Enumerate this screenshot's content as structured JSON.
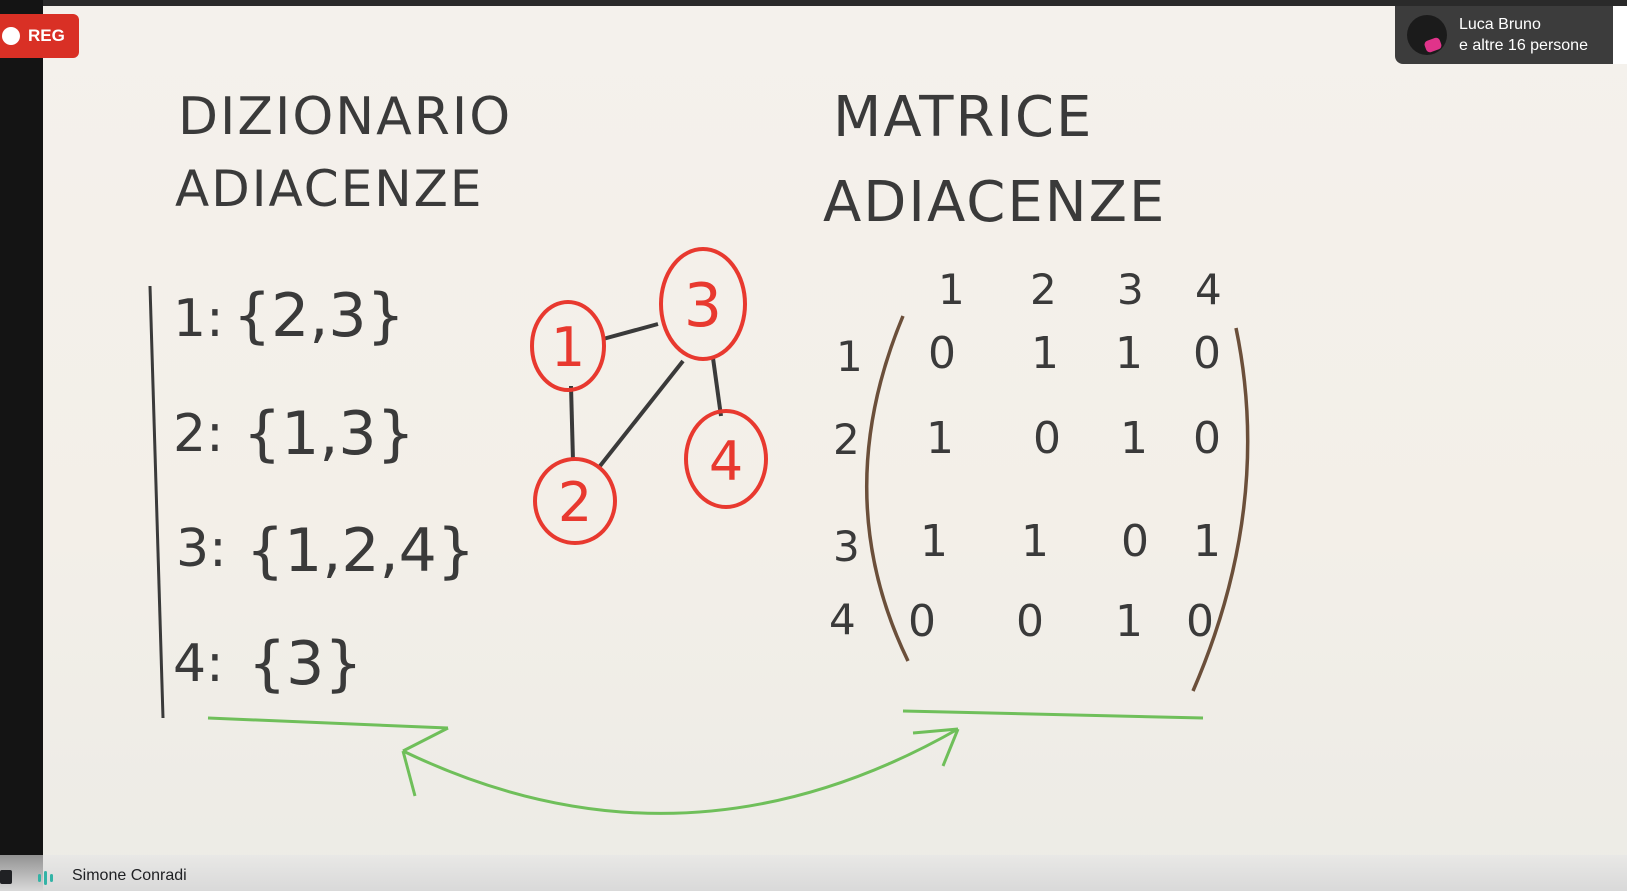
{
  "recording": {
    "label": "REG"
  },
  "participants": {
    "name": "Luca Bruno",
    "others": "e altre 16 persone"
  },
  "speaker": {
    "name": "Simone Conradi"
  },
  "whiteboard": {
    "left_title_line1": "DIZIONARIO",
    "left_title_line2": "ADIACENZE",
    "right_title_line1": "MATRICE",
    "right_title_line2": "ADIACENZE",
    "dictionary": [
      {
        "key": "1:",
        "value": "{2,3}"
      },
      {
        "key": "2:",
        "value": "{1,3}"
      },
      {
        "key": "3:",
        "value": "{1,2,4}"
      },
      {
        "key": "4:",
        "value": "{3}"
      }
    ],
    "graph_nodes": [
      "1",
      "2",
      "3",
      "4"
    ],
    "matrix_col_headers": [
      "1",
      "2",
      "3",
      "4"
    ],
    "matrix_row_headers": [
      "1",
      "2",
      "3",
      "4"
    ],
    "matrix_rows": [
      [
        "0",
        "1",
        "1",
        "0"
      ],
      [
        "1",
        "0",
        "1",
        "0"
      ],
      [
        "1",
        "1",
        "0",
        "1"
      ],
      [
        "0",
        "0",
        "1",
        "0"
      ]
    ]
  },
  "colors": {
    "rec": "#d93025",
    "graph": "#e8392f",
    "arrow": "#6fbf5a",
    "ink": "#3a3a3a",
    "mic": "#33b3a6"
  },
  "icons": {
    "record": "record-dot-icon",
    "avatar": "avatar-icon",
    "mic": "mic-activity-icon",
    "camera": "camera-icon"
  }
}
